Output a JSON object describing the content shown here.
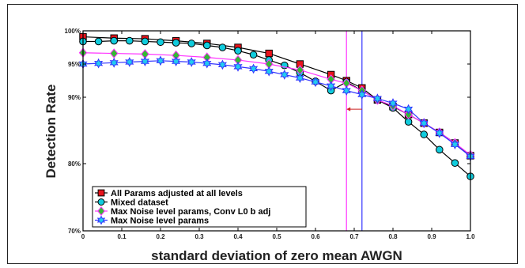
{
  "chart_data": {
    "type": "line",
    "title": "",
    "xlabel": "standard deviation of zero mean AWGN",
    "ylabel": "Detection Rate",
    "xlim": [
      0,
      1
    ],
    "ylim": [
      70,
      100
    ],
    "x_ticks": [
      0,
      0.1,
      0.2,
      0.3,
      0.4,
      0.5,
      0.6,
      0.7,
      0.8,
      0.9,
      1
    ],
    "x_tick_labels": [
      "0",
      "0.1",
      "0.2",
      "0.3",
      "0.4",
      "0.5",
      "0.6",
      "0.7",
      "0.8",
      "0.9",
      "1.0"
    ],
    "y_ticks": [
      70,
      80,
      90,
      95,
      100
    ],
    "y_tick_labels": [
      "70%",
      "80%",
      "90%",
      "95%",
      "100%"
    ],
    "grid": false,
    "legend_position": "bottom-left",
    "vertical_lines": [
      {
        "x": 0.68,
        "color": "#ff33ff"
      },
      {
        "x": 0.72,
        "color": "#3333ff"
      }
    ],
    "annotation_arrow": {
      "from_x": 0.72,
      "to_x": 0.68,
      "y": 88.2,
      "color": "#cc2222"
    },
    "series": [
      {
        "name": "All Params adjusted at all levels",
        "color": "#000000",
        "marker": "square",
        "marker_fill": "#e8141c",
        "x": [
          0,
          0.08,
          0.16,
          0.24,
          0.32,
          0.4,
          0.48,
          0.56,
          0.64,
          0.68,
          0.72,
          0.76,
          0.8,
          0.84,
          0.88,
          0.92,
          0.96,
          1.0
        ],
        "y": [
          99.1,
          98.9,
          98.8,
          98.5,
          98.1,
          97.5,
          96.6,
          95.0,
          93.4,
          92.5,
          91.4,
          89.6,
          88.6,
          87.4,
          86.1,
          84.7,
          83.1,
          81.2
        ]
      },
      {
        "name": "Mixed dataset",
        "color": "#000000",
        "marker": "circle",
        "marker_fill": "#11ccdd",
        "x": [
          0,
          0.04,
          0.08,
          0.12,
          0.16,
          0.2,
          0.24,
          0.28,
          0.32,
          0.36,
          0.4,
          0.44,
          0.48,
          0.52,
          0.56,
          0.6,
          0.64,
          0.68,
          0.72,
          0.76,
          0.8,
          0.84,
          0.88,
          0.92,
          0.96,
          1.0
        ],
        "y": [
          98.4,
          98.4,
          98.5,
          98.5,
          98.4,
          98.3,
          98.2,
          98.1,
          97.8,
          97.5,
          97.0,
          96.4,
          95.6,
          94.8,
          93.7,
          92.4,
          91.0,
          92.3,
          91.0,
          89.6,
          88.4,
          86.3,
          84.4,
          82.1,
          80.1,
          78.1
        ]
      },
      {
        "name": "Max Noise level params, Conv L0 b adj",
        "color": "#ff33ff",
        "marker": "diamond",
        "marker_fill": "#33bb33",
        "x": [
          0,
          0.08,
          0.16,
          0.24,
          0.32,
          0.4,
          0.48,
          0.56,
          0.64,
          0.68,
          0.72,
          0.76,
          0.8,
          0.84,
          0.88,
          0.92,
          0.96,
          1.0
        ],
        "y": [
          96.7,
          96.6,
          96.5,
          96.3,
          96.0,
          95.6,
          95.0,
          94.1,
          92.7,
          92.1,
          91.0,
          89.6,
          88.7,
          87.4,
          86.1,
          84.7,
          83.1,
          81.3
        ]
      },
      {
        "name": "Max Noise level params",
        "color": "#3333ff",
        "marker": "hexagram",
        "marker_fill": "#22ccee",
        "x": [
          0,
          0.04,
          0.08,
          0.12,
          0.16,
          0.2,
          0.24,
          0.28,
          0.32,
          0.36,
          0.4,
          0.44,
          0.48,
          0.52,
          0.56,
          0.6,
          0.64,
          0.68,
          0.72,
          0.76,
          0.8,
          0.84,
          0.88,
          0.92,
          0.96,
          1.0
        ],
        "y": [
          95.0,
          95.1,
          95.2,
          95.3,
          95.4,
          95.5,
          95.4,
          95.3,
          95.1,
          94.9,
          94.6,
          94.3,
          93.9,
          93.4,
          92.9,
          92.3,
          91.7,
          91.0,
          90.4,
          89.8,
          89.1,
          88.2,
          86.1,
          84.6,
          82.9,
          81.1
        ]
      }
    ]
  }
}
